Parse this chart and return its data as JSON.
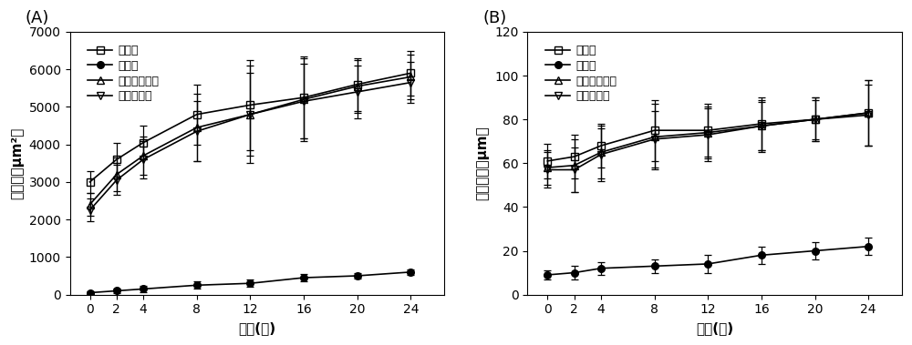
{
  "x": [
    0,
    2,
    4,
    8,
    12,
    16,
    20,
    24
  ],
  "panel_A": {
    "title": "(A)",
    "ylabel": "截面积（μm²）",
    "xlabel": "时间(周)",
    "ylim": [
      0,
      7000
    ],
    "yticks": [
      0,
      1000,
      2000,
      3000,
      4000,
      5000,
      6000,
      7000
    ],
    "series": {
      "空白组": {
        "y": [
          3000,
          3600,
          4050,
          4800,
          5050,
          5250,
          5600,
          5900
        ],
        "yerr": [
          300,
          450,
          450,
          800,
          1200,
          1100,
          700,
          600
        ],
        "marker": "s",
        "fillstyle": "none",
        "color": "#000000",
        "linestyle": "-"
      },
      "速冻组": {
        "y": [
          50,
          100,
          150,
          250,
          300,
          450,
          500,
          600
        ],
        "yerr": [
          30,
          50,
          80,
          100,
          100,
          100,
          80,
          80
        ],
        "marker": "o",
        "fillstyle": "full",
        "color": "#000000",
        "linestyle": "-"
      },
      "内源酶抑制组": {
        "y": [
          2400,
          3200,
          3700,
          4450,
          4800,
          5200,
          5550,
          5800
        ],
        "yerr": [
          300,
          450,
          500,
          900,
          1300,
          1100,
          700,
          600
        ],
        "marker": "^",
        "fillstyle": "none",
        "color": "#000000",
        "linestyle": "-"
      },
      "氧化抑制组": {
        "y": [
          2250,
          3050,
          3600,
          4350,
          4800,
          5150,
          5400,
          5650
        ],
        "yerr": [
          300,
          400,
          500,
          800,
          1100,
          1000,
          700,
          550
        ],
        "marker": "v",
        "fillstyle": "none",
        "color": "#000000",
        "linestyle": "-"
      }
    }
  },
  "panel_B": {
    "title": "(B)",
    "ylabel": "当量直径（μm）",
    "xlabel": "时间(周)",
    "ylim": [
      0,
      120
    ],
    "yticks": [
      0,
      20,
      40,
      60,
      80,
      100,
      120
    ],
    "series": {
      "空白组": {
        "y": [
          61,
          63,
          68,
          75,
          75,
          78,
          80,
          83
        ],
        "yerr": [
          8,
          10,
          10,
          14,
          12,
          12,
          10,
          15
        ],
        "marker": "s",
        "fillstyle": "none",
        "color": "#000000",
        "linestyle": "-"
      },
      "速冻组": {
        "y": [
          9,
          10,
          12,
          13,
          14,
          18,
          20,
          22
        ],
        "yerr": [
          2,
          3,
          3,
          3,
          4,
          4,
          4,
          4
        ],
        "marker": "o",
        "fillstyle": "full",
        "color": "#000000",
        "linestyle": "-"
      },
      "内源酶抑制组": {
        "y": [
          58,
          59,
          65,
          72,
          74,
          77,
          80,
          83
        ],
        "yerr": [
          8,
          12,
          12,
          15,
          12,
          12,
          10,
          15
        ],
        "marker": "^",
        "fillstyle": "none",
        "color": "#000000",
        "linestyle": "-"
      },
      "氧化抑制组": {
        "y": [
          57,
          57,
          64,
          71,
          73,
          77,
          80,
          82
        ],
        "yerr": [
          8,
          10,
          12,
          13,
          12,
          11,
          9,
          14
        ],
        "marker": "v",
        "fillstyle": "none",
        "color": "#000000",
        "linestyle": "-"
      }
    }
  },
  "legend_labels": [
    "空白组",
    "速冻组",
    "内源酶抑制组",
    "氧化抑制组"
  ],
  "background_color": "#ffffff"
}
